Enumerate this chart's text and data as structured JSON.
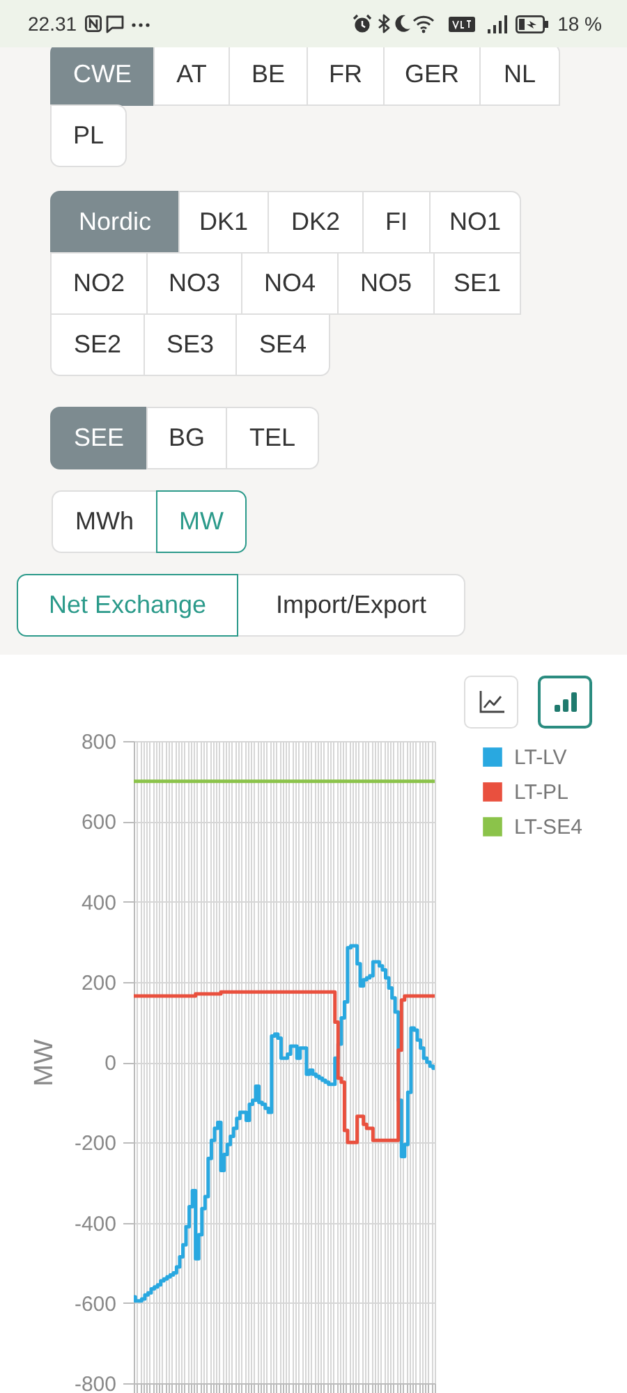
{
  "chart_data": {
    "type": "step",
    "ylabel": "MW",
    "categories": [
      null,
      null,
      null,
      null,
      null,
      null,
      null,
      null,
      null,
      null,
      null,
      null,
      null,
      null,
      null,
      null,
      null,
      null,
      null,
      null,
      null,
      null,
      null,
      null,
      null,
      null,
      null,
      null,
      null,
      null,
      null,
      null,
      null,
      null,
      null,
      null,
      null,
      null,
      null,
      null,
      null,
      null,
      null,
      null,
      null,
      null,
      null,
      null,
      null,
      null,
      null,
      null,
      null,
      null,
      null,
      null,
      null,
      null,
      null,
      null,
      null,
      null,
      null,
      null,
      null,
      null,
      null,
      null,
      null,
      null,
      null,
      null,
      null,
      null,
      null,
      null,
      null,
      null,
      null,
      null,
      null,
      null,
      null,
      null,
      null,
      null,
      null,
      null,
      null,
      null,
      null,
      null,
      null,
      null,
      null,
      null
    ],
    "series": [
      {
        "name": "LT-LV",
        "color": "#29a8e0",
        "values": [
          -585,
          -595,
          -595,
          -590,
          -580,
          -575,
          -565,
          -560,
          -555,
          -545,
          -540,
          -535,
          -530,
          -525,
          -510,
          -485,
          -455,
          -410,
          -360,
          -320,
          -490,
          -430,
          -365,
          -335,
          -240,
          -195,
          -165,
          -150,
          -270,
          -230,
          -205,
          -185,
          -165,
          -140,
          -125,
          -125,
          -145,
          -105,
          -95,
          -60,
          -100,
          -105,
          -115,
          -125,
          65,
          70,
          60,
          10,
          10,
          20,
          40,
          40,
          10,
          35,
          35,
          -30,
          -20,
          -30,
          -35,
          -40,
          -45,
          -50,
          -55,
          -55,
          10,
          45,
          110,
          150,
          285,
          290,
          290,
          245,
          190,
          205,
          210,
          215,
          250,
          250,
          240,
          230,
          210,
          185,
          160,
          125,
          -95,
          -235,
          -205,
          -75,
          85,
          80,
          55,
          35,
          10,
          0,
          -10,
          -15
        ]
      },
      {
        "name": "LT-PL",
        "color": "#e9503e",
        "values": [
          165,
          165,
          165,
          165,
          165,
          165,
          165,
          165,
          165,
          165,
          165,
          165,
          165,
          165,
          165,
          165,
          165,
          165,
          165,
          165,
          170,
          170,
          170,
          170,
          170,
          170,
          170,
          170,
          175,
          175,
          175,
          175,
          175,
          175,
          175,
          175,
          175,
          175,
          175,
          175,
          175,
          175,
          175,
          175,
          175,
          175,
          175,
          175,
          175,
          175,
          175,
          175,
          175,
          175,
          175,
          175,
          175,
          175,
          175,
          175,
          175,
          175,
          175,
          175,
          100,
          -40,
          -50,
          -170,
          -200,
          -200,
          -200,
          -135,
          -135,
          -155,
          -165,
          -165,
          -195,
          -195,
          -195,
          -195,
          -195,
          -195,
          -195,
          -195,
          30,
          155,
          165,
          165,
          165,
          165,
          165,
          165,
          165,
          165,
          165,
          165
        ]
      },
      {
        "name": "LT-SE4",
        "color": "#8bc34a",
        "values": [
          700,
          700,
          700,
          700,
          700,
          700,
          700,
          700,
          700,
          700,
          700,
          700,
          700,
          700,
          700,
          700,
          700,
          700,
          700,
          700,
          700,
          700,
          700,
          700,
          700,
          700,
          700,
          700,
          700,
          700,
          700,
          700,
          700,
          700,
          700,
          700,
          700,
          700,
          700,
          700,
          700,
          700,
          700,
          700,
          700,
          700,
          700,
          700,
          700,
          700,
          700,
          700,
          700,
          700,
          700,
          700,
          700,
          700,
          700,
          700,
          700,
          700,
          700,
          700,
          700,
          700,
          700,
          700,
          700,
          700,
          700,
          700,
          700,
          700,
          700,
          700,
          700,
          700,
          700,
          700,
          700,
          700,
          700,
          700,
          700,
          700,
          700,
          700,
          700,
          700,
          700,
          700,
          700,
          700,
          700,
          700
        ]
      }
    ],
    "ylim": [
      -800,
      800
    ],
    "yticks": [
      -800,
      -600,
      -400,
      -200,
      0,
      200,
      400,
      600,
      800
    ],
    "grid": true,
    "legend": "right",
    "tick_labels": "y",
    "annotations": [
      "22.31",
      "18 %",
      "CWE",
      "AT",
      "BE",
      "FR",
      "GER",
      "NL",
      "PL",
      "Nordic",
      "DK1",
      "DK2",
      "FI",
      "NO1",
      "NO2",
      "NO3",
      "NO4",
      "NO5",
      "SE1",
      "SE2",
      "SE3",
      "SE4",
      "SEE",
      "BG",
      "TEL",
      "MWh",
      "MW",
      "Net Exchange",
      "Import/Export"
    ]
  }
}
